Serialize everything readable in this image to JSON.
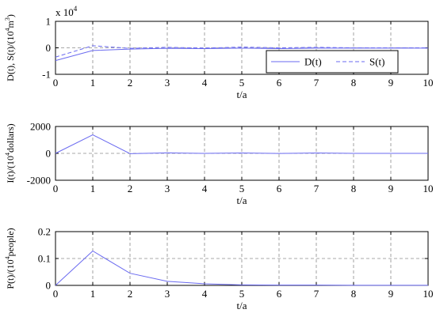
{
  "chart_data": [
    {
      "type": "line",
      "ylabel_parts": {
        "main": "D(t), S(t)/(10",
        "sup1": "4",
        "mid": "m",
        "sup2": "3",
        "end": ")"
      },
      "xlabel": "t/a",
      "multiplier": {
        "base": "x 10",
        "exp": "4"
      },
      "xlim": [
        0,
        10
      ],
      "ylim": [
        -1,
        1
      ],
      "xticks": [
        "0",
        "1",
        "2",
        "3",
        "4",
        "5",
        "6",
        "7",
        "8",
        "9",
        "10"
      ],
      "yticks": [
        "-1",
        "0",
        "1"
      ],
      "grid": true,
      "legend_position": "lower-right",
      "series": [
        {
          "name": "D(t)",
          "style": "solid",
          "color": "#6a6af0",
          "x": [
            0,
            1,
            2,
            3,
            4,
            5,
            6,
            7,
            8,
            9,
            10
          ],
          "y": [
            -0.48,
            -0.1,
            -0.05,
            -0.02,
            -0.03,
            -0.01,
            -0.03,
            -0.01,
            -0.01,
            -0.01,
            -0.01
          ]
        },
        {
          "name": "S(t)",
          "style": "dashed",
          "color": "#6a6af0",
          "x": [
            0,
            1,
            2,
            3,
            4,
            5,
            6,
            7,
            8,
            9,
            10
          ],
          "y": [
            -0.35,
            0.08,
            -0.02,
            0.02,
            -0.01,
            0.03,
            0.0,
            0.02,
            0.0,
            0.0,
            0.0
          ]
        }
      ]
    },
    {
      "type": "line",
      "ylabel_parts": {
        "main": "I(t)/(10",
        "sup1": "4",
        "end": "dollars)"
      },
      "xlabel": "t/a",
      "xlim": [
        0,
        10
      ],
      "ylim": [
        -2000,
        2000
      ],
      "xticks": [
        "0",
        "1",
        "2",
        "3",
        "4",
        "5",
        "6",
        "7",
        "8",
        "9",
        "10"
      ],
      "yticks": [
        "-2000",
        "0",
        "2000"
      ],
      "grid": true,
      "series": [
        {
          "style": "solid",
          "color": "#6a6af0",
          "x": [
            0,
            1,
            2,
            3,
            4,
            5,
            6,
            7,
            8,
            9,
            10
          ],
          "y": [
            0,
            1380,
            -20,
            40,
            0,
            30,
            -10,
            30,
            0,
            0,
            0
          ]
        }
      ]
    },
    {
      "type": "line",
      "ylabel_parts": {
        "main": "P(t)/(10",
        "sup1": "4",
        "end": "people)"
      },
      "xlabel": "t/a",
      "xlim": [
        0,
        10
      ],
      "ylim": [
        0,
        0.2
      ],
      "xticks": [
        "0",
        "1",
        "2",
        "3",
        "4",
        "5",
        "6",
        "7",
        "8",
        "9",
        "10"
      ],
      "yticks": [
        "0",
        "0.1",
        "0.2"
      ],
      "grid": true,
      "series": [
        {
          "style": "solid",
          "color": "#6a6af0",
          "x": [
            0,
            1,
            2,
            3,
            4,
            5,
            6,
            7,
            8,
            9,
            10
          ],
          "y": [
            0,
            0.128,
            0.045,
            0.015,
            0.006,
            0.002,
            0.001,
            0.001,
            0.0005,
            0.0003,
            0.0002
          ]
        }
      ]
    }
  ]
}
